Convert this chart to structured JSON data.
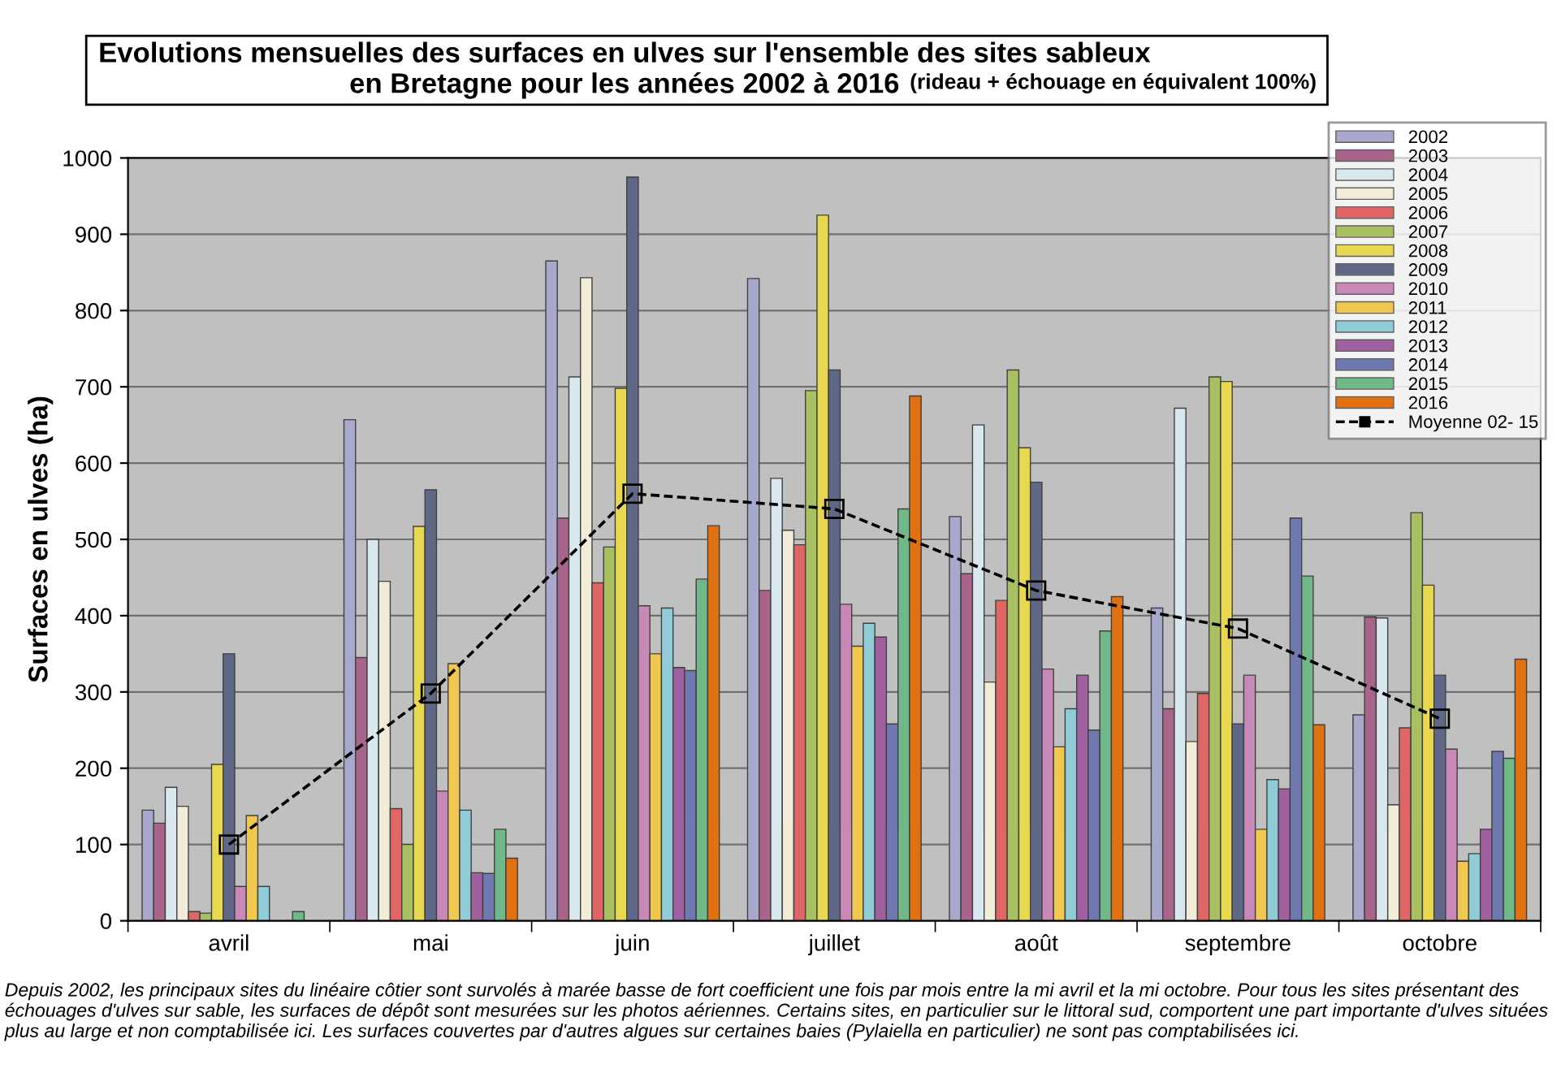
{
  "chart_data": {
    "type": "bar",
    "title": "Evolutions mensuelles des surfaces en ulves sur l'ensemble des sites sableux\nen Bretagne pour les années 2002 à 2016",
    "subtitle": "(rideau + échouage en équivalent 100%)",
    "ylabel": "Surfaces en ulves (ha)",
    "categories": [
      "avril",
      "mai",
      "juin",
      "juillet",
      "août",
      "septembre",
      "octobre"
    ],
    "series": [
      {
        "name": "2002",
        "color": "#a8a8cc",
        "values": [
          145,
          657,
          865,
          842,
          530,
          410,
          270
        ]
      },
      {
        "name": "2003",
        "color": "#a8648a",
        "values": [
          128,
          345,
          528,
          433,
          455,
          278,
          398
        ]
      },
      {
        "name": "2004",
        "color": "#d8e8ee",
        "values": [
          175,
          500,
          713,
          580,
          650,
          672,
          397
        ]
      },
      {
        "name": "2005",
        "color": "#f0ecd8",
        "values": [
          150,
          445,
          843,
          512,
          313,
          235,
          152
        ]
      },
      {
        "name": "2006",
        "color": "#e06666",
        "values": [
          12,
          147,
          443,
          493,
          420,
          298,
          253
        ]
      },
      {
        "name": "2007",
        "color": "#a8c060",
        "values": [
          10,
          100,
          490,
          695,
          722,
          713,
          535
        ]
      },
      {
        "name": "2008",
        "color": "#e8d850",
        "values": [
          205,
          517,
          698,
          925,
          620,
          707,
          440
        ]
      },
      {
        "name": "2009",
        "color": "#606888",
        "values": [
          350,
          565,
          975,
          722,
          575,
          258,
          322
        ]
      },
      {
        "name": "2010",
        "color": "#c888b8",
        "values": [
          45,
          170,
          413,
          415,
          330,
          322,
          225
        ]
      },
      {
        "name": "2011",
        "color": "#f0c850",
        "values": [
          138,
          337,
          350,
          360,
          228,
          120,
          78
        ]
      },
      {
        "name": "2012",
        "color": "#90ccd8",
        "values": [
          45,
          145,
          410,
          390,
          278,
          185,
          88
        ]
      },
      {
        "name": "2013",
        "color": "#a060a0",
        "values": [
          null,
          63,
          332,
          372,
          322,
          173,
          120
        ]
      },
      {
        "name": "2014",
        "color": "#7078b0",
        "values": [
          0,
          62,
          328,
          258,
          250,
          528,
          222
        ]
      },
      {
        "name": "2015",
        "color": "#70b888",
        "values": [
          12,
          120,
          448,
          540,
          380,
          452,
          213
        ]
      },
      {
        "name": "2016",
        "color": "#e07010",
        "values": [
          0,
          82,
          518,
          688,
          425,
          257,
          343
        ]
      },
      {
        "name": "Moyenne 02- 15",
        "type": "line",
        "color": "#000000",
        "line_style": "dashed",
        "marker": "square",
        "values": [
          100,
          298,
          560,
          540,
          433,
          383,
          265
        ]
      }
    ],
    "ylim": [
      0,
      1000
    ],
    "yticks": [
      0,
      100,
      200,
      300,
      400,
      500,
      600,
      700,
      800,
      900,
      1000
    ],
    "grid": "y",
    "legend": "top right",
    "annotations": [
      "Depuis 2002, les principaux sites du linéaire côtier sont survolés à marée basse de fort coefficient une fois par mois entre la mi avril et la mi octobre. Pour tous les sites présentant des échouages d'ulves sur sable, les surfaces de dépôt sont mesurées sur les photos aériennes. Certains sites, en particulier sur le littoral sud, comportent une part importante d'ulves situées plus au large et non comptabilisée ici. Les surfaces couvertes par d'autres algues sur certaines baies (Pylaiella en particulier) ne sont pas comptabilisées ici."
    ]
  }
}
